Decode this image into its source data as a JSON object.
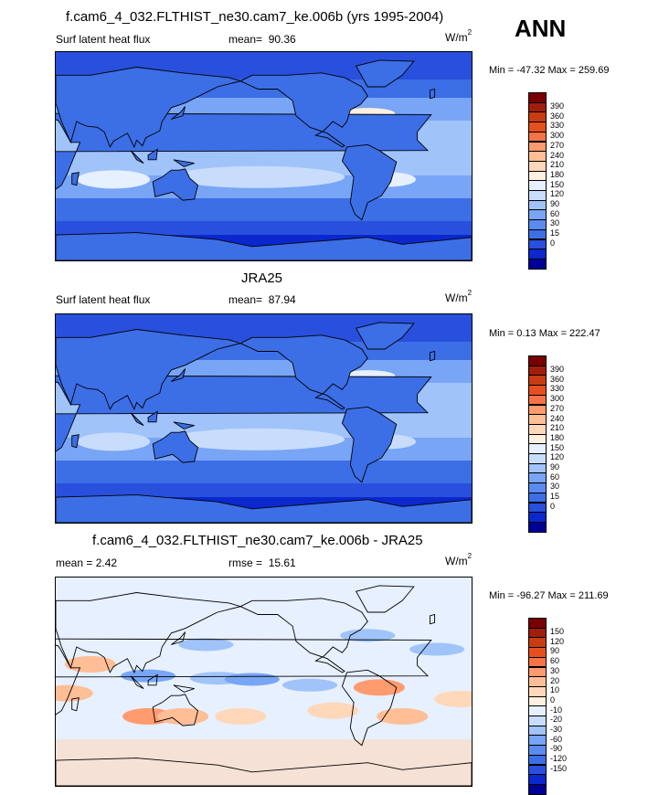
{
  "season": "ANN",
  "colors": {
    "flux": [
      "#000096",
      "#0a28cd",
      "#2850dc",
      "#3c6ee6",
      "#5a8cf0",
      "#78a5f5",
      "#a0c3fa",
      "#c8dcfc",
      "#e6f0ff",
      "#fff0e1",
      "#ffd7b9",
      "#ffbe96",
      "#ff9b6e",
      "#f57346",
      "#e6501e",
      "#c83c14",
      "#a01e0a",
      "#780000"
    ],
    "diff": [
      "#000096",
      "#0a28cd",
      "#2850dc",
      "#3c6ee6",
      "#5a8cf0",
      "#78a5f5",
      "#a0c3fa",
      "#c8dcfc",
      "#e6f0ff",
      "#fff0e1",
      "#ffd7b9",
      "#ffbe96",
      "#ff9b6e",
      "#f57346",
      "#e6501e",
      "#c83c14",
      "#a01e0a",
      "#780000"
    ]
  },
  "panels": [
    {
      "title": "f.cam6_4_032.FLTHIST_ne30.cam7_ke.006b (yrs 1995-2004)",
      "left_label": "Surf latent heat flux",
      "stat_label": "mean=",
      "stat_value": "90.36",
      "units": "W/m",
      "units_sup": "2",
      "minmax": "Min = -47.32 Max = 259.69",
      "colorbar_labels": [
        "390",
        "360",
        "330",
        "300",
        "270",
        "240",
        "210",
        "180",
        "150",
        "120",
        "90",
        "60",
        "30",
        "15",
        "0"
      ],
      "kind": "flux",
      "pattern": "model"
    },
    {
      "title": "JRA25",
      "left_label": "Surf latent heat flux",
      "stat_label": "mean=",
      "stat_value": "87.94",
      "units": "W/m",
      "units_sup": "2",
      "minmax": "Min =   0.13 Max = 222.47",
      "colorbar_labels": [
        "390",
        "360",
        "330",
        "300",
        "270",
        "240",
        "210",
        "180",
        "150",
        "120",
        "90",
        "60",
        "30",
        "15",
        "0"
      ],
      "kind": "flux",
      "pattern": "obs"
    },
    {
      "title": "f.cam6_4_032.FLTHIST_ne30.cam7_ke.006b - JRA25",
      "left_label": "mean =   2.42",
      "stat_label": "rmse =",
      "stat_value": "15.61",
      "units": "W/m",
      "units_sup": "2",
      "minmax": "Min = -96.27 Max = 211.69",
      "colorbar_labels": [
        "150",
        "120",
        "90",
        "60",
        "30",
        "20",
        "10",
        "0",
        "-10",
        "-20",
        "-30",
        "-60",
        "-90",
        "-120",
        "-150"
      ],
      "kind": "diff",
      "pattern": "diff"
    }
  ]
}
